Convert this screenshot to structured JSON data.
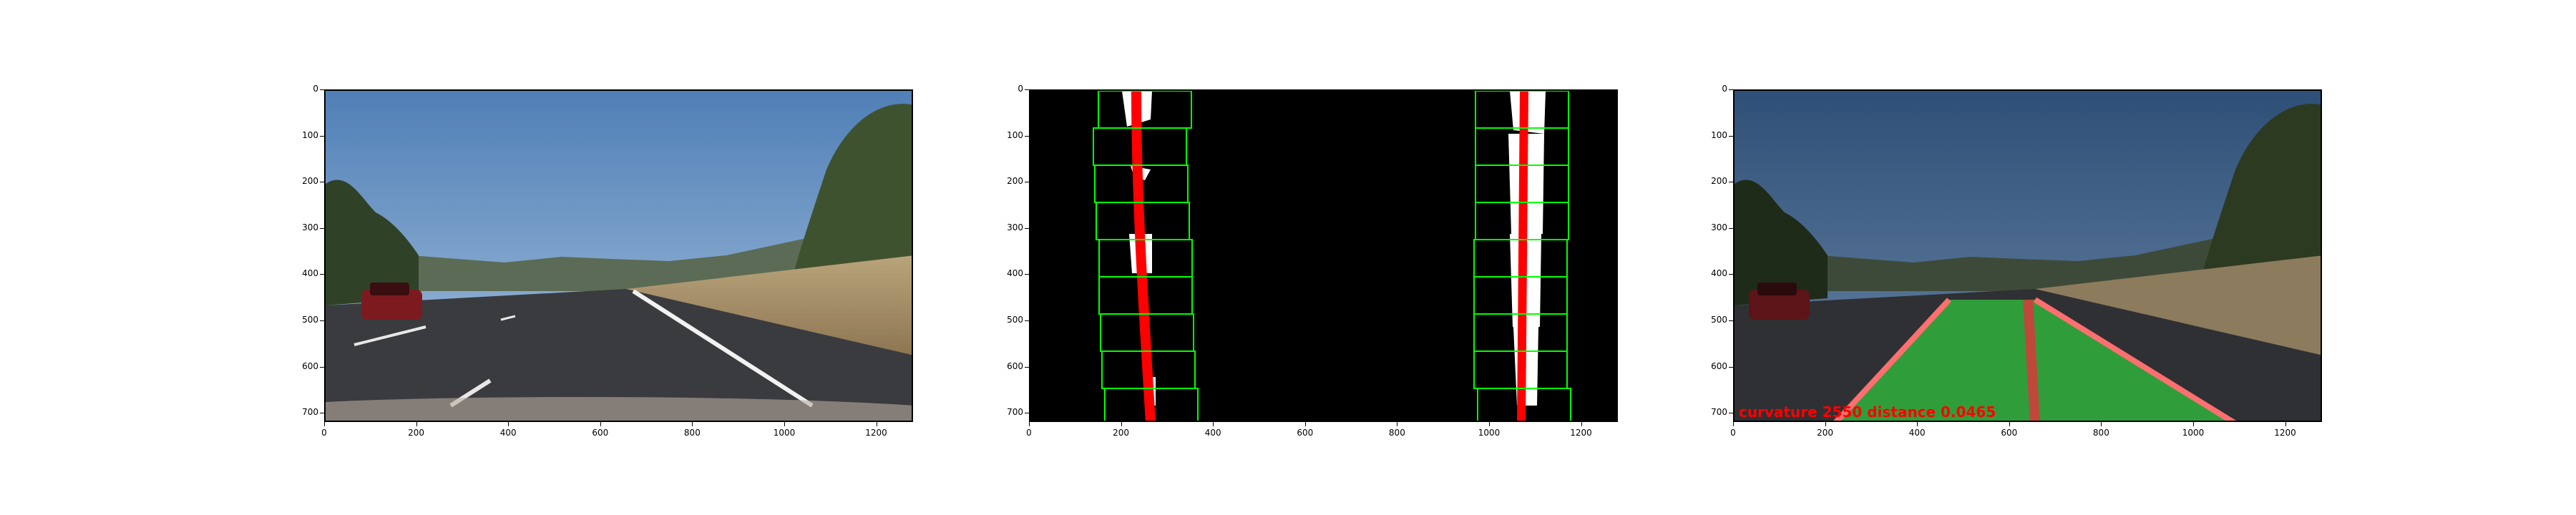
{
  "figure": {
    "panels": [
      {
        "id": "original-road-image",
        "kind": "photo"
      },
      {
        "id": "sliding-window-binary",
        "kind": "binary-warped"
      },
      {
        "id": "lane-overlay-result",
        "kind": "photo-overlay"
      }
    ],
    "axes": {
      "y_ticks": [
        "0",
        "100",
        "200",
        "300",
        "400",
        "500",
        "600",
        "700"
      ],
      "x_ticks": [
        "0",
        "200",
        "400",
        "600",
        "800",
        "1000",
        "1200"
      ]
    },
    "overlay": {
      "text": "curvature 2550 distance 0.0465",
      "color": "#ff0000"
    },
    "colors": {
      "sky": "#6f97c7",
      "road": "#2f3033",
      "lane_fill": "#2fb13c",
      "window": "#00ff00",
      "fit_line": "#ff0000"
    }
  }
}
